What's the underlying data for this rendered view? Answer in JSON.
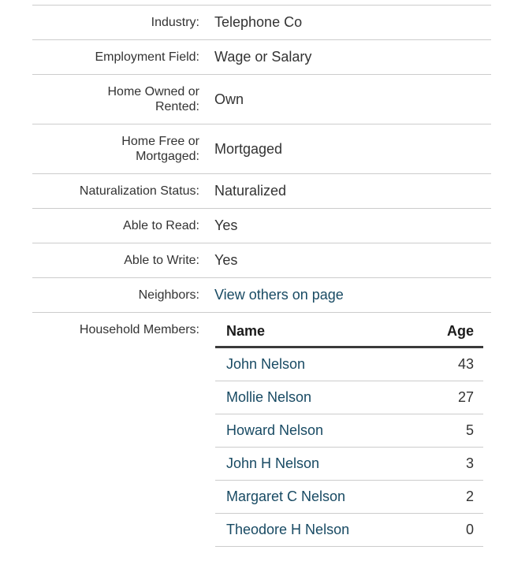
{
  "colors": {
    "link": "#184a63",
    "text": "#333333",
    "heading": "#1b1b1b",
    "divider": "#cccccc",
    "header_border": "#3b3b3b",
    "background": "#ffffff"
  },
  "record": {
    "fields": [
      {
        "label": "Industry:",
        "value": "Telephone Co"
      },
      {
        "label": "Employment Field:",
        "value": "Wage or Salary"
      },
      {
        "label": "Home Owned or Rented:",
        "value": "Own"
      },
      {
        "label": "Home Free or Mortgaged:",
        "value": "Mortgaged"
      },
      {
        "label": "Naturalization Status:",
        "value": "Naturalized"
      },
      {
        "label": "Able to Read:",
        "value": "Yes"
      },
      {
        "label": "Able to Write:",
        "value": "Yes"
      },
      {
        "label": "Neighbors:",
        "value": "View others on page"
      }
    ],
    "household": {
      "label": "Household Members:",
      "columns": [
        "Name",
        "Age"
      ],
      "members": [
        {
          "name": "John Nelson",
          "age": "43"
        },
        {
          "name": "Mollie Nelson",
          "age": "27"
        },
        {
          "name": "Howard Nelson",
          "age": "5"
        },
        {
          "name": "John H Nelson",
          "age": "3"
        },
        {
          "name": "Margaret C Nelson",
          "age": "2"
        },
        {
          "name": "Theodore H Nelson",
          "age": "0"
        }
      ]
    }
  }
}
